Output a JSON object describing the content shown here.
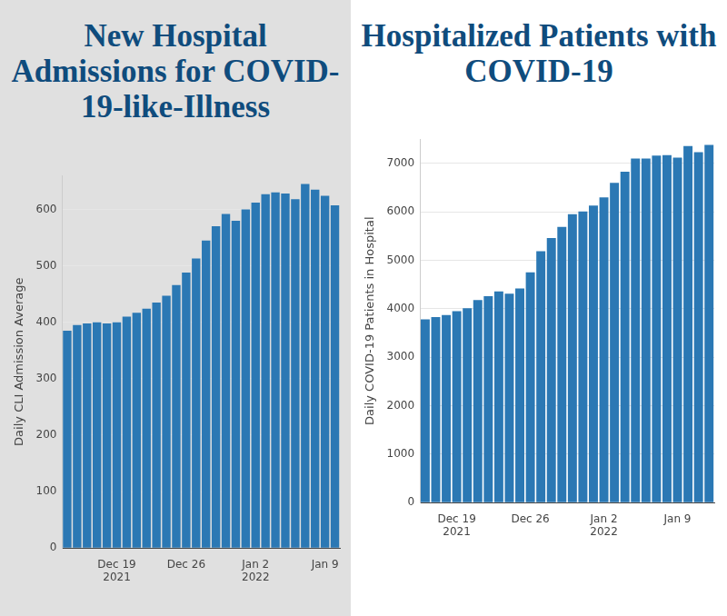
{
  "chart_data": [
    {
      "type": "bar",
      "title": "New Hospital Admissions for COVID-19-like-Illness",
      "y_label": "Daily CLI Admission Average",
      "categories": [
        null,
        null,
        null,
        null,
        null,
        "Dec 19\n2021",
        null,
        null,
        null,
        null,
        null,
        null,
        "Dec 26",
        null,
        null,
        null,
        null,
        null,
        null,
        "Jan 2\n2022",
        null,
        null,
        null,
        null,
        null,
        null,
        "Jan 9",
        null
      ],
      "values": [
        385,
        395,
        398,
        400,
        398,
        400,
        410,
        417,
        424,
        435,
        447,
        466,
        488,
        513,
        545,
        570,
        592,
        580,
        600,
        612,
        627,
        630,
        628,
        618,
        645,
        635,
        624,
        607
      ],
      "color": "#2b78b4",
      "ylim": [
        0,
        660
      ],
      "yticks": [
        0,
        100,
        200,
        300,
        400,
        500,
        600
      ],
      "grid": true
    },
    {
      "type": "bar",
      "title": "Hospitalized Patients with COVID-19",
      "y_label": "Daily COVID-19 Patients in Hospital",
      "categories": [
        null,
        null,
        null,
        "Dec 19\n2021",
        null,
        null,
        null,
        null,
        null,
        null,
        "Dec 26",
        null,
        null,
        null,
        null,
        null,
        null,
        "Jan 2\n2022",
        null,
        null,
        null,
        null,
        null,
        null,
        "Jan 9",
        null,
        null,
        null
      ],
      "values": [
        3780,
        3830,
        3870,
        3950,
        4010,
        4180,
        4260,
        4360,
        4310,
        4420,
        4750,
        5190,
        5460,
        5690,
        5950,
        6010,
        6130,
        6300,
        6600,
        6830,
        7100,
        7100,
        7160,
        7170,
        7120,
        7360,
        7230,
        7380
      ],
      "color": "#2b78b4",
      "ylim": [
        0,
        7500
      ],
      "yticks": [
        0,
        1000,
        2000,
        3000,
        4000,
        5000,
        6000,
        7000
      ],
      "grid": true
    }
  ]
}
